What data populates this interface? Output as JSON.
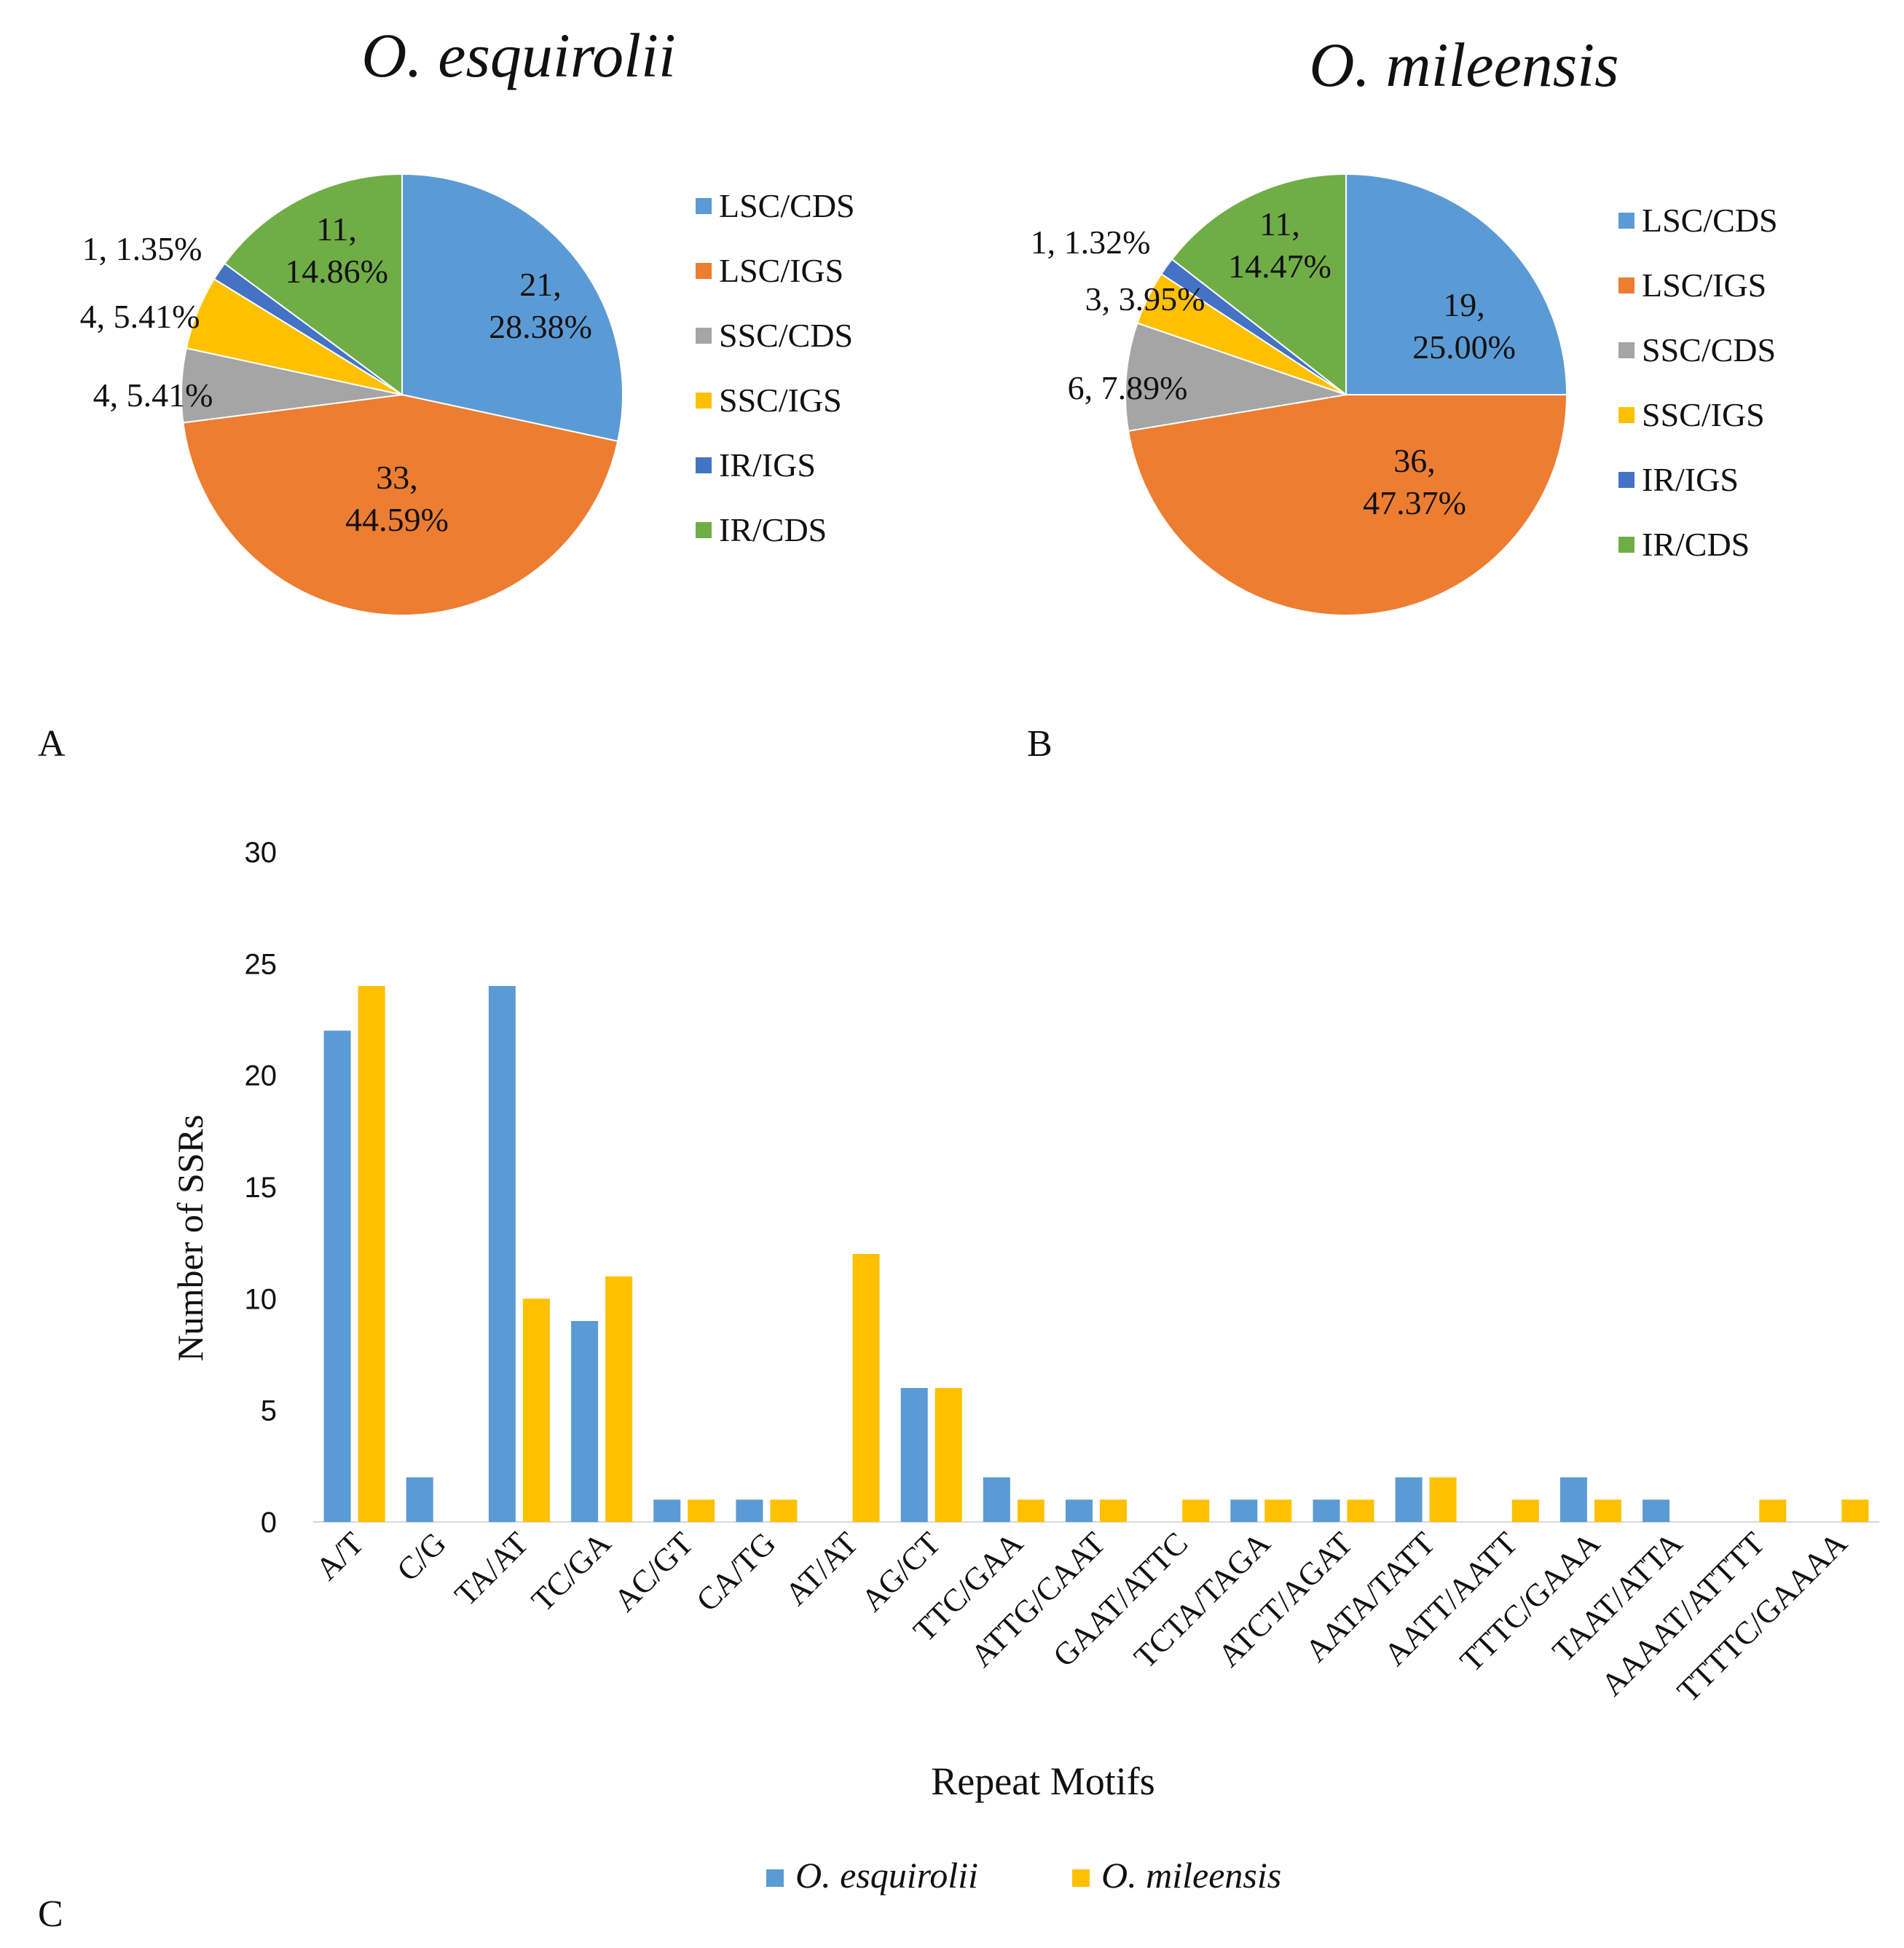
{
  "chart_data": [
    {
      "type": "pie",
      "panel_label": "A",
      "title": "O. esquirolii",
      "slices": [
        {
          "label": "LSC/CDS",
          "value": 21,
          "data_label": [
            "21,",
            "28.38%"
          ]
        },
        {
          "label": "LSC/IGS",
          "value": 33,
          "data_label": [
            "33,",
            "44.59%"
          ]
        },
        {
          "label": "SSC/CDS",
          "value": 4,
          "data_label": [
            "4, 5.41%"
          ]
        },
        {
          "label": "SSC/IGS",
          "value": 4,
          "data_label": [
            "4, 5.41%"
          ]
        },
        {
          "label": "IR/IGS",
          "value": 1,
          "data_label": [
            "1, 1.35%"
          ]
        },
        {
          "label": "IR/CDS",
          "value": 11,
          "data_label": [
            "11,",
            "14.86%"
          ]
        }
      ],
      "legend": [
        "LSC/CDS",
        "LSC/IGS",
        "SSC/CDS",
        "SSC/IGS",
        "IR/IGS",
        "IR/CDS"
      ],
      "legend_position": "right"
    },
    {
      "type": "pie",
      "panel_label": "B",
      "title": "O. mileensis",
      "slices": [
        {
          "label": "LSC/CDS",
          "value": 19,
          "data_label": [
            "19,",
            "25.00%"
          ]
        },
        {
          "label": "LSC/IGS",
          "value": 36,
          "data_label": [
            "36,",
            "47.37%"
          ]
        },
        {
          "label": "SSC/CDS",
          "value": 6,
          "data_label": [
            "6, 7.89%"
          ]
        },
        {
          "label": "SSC/IGS",
          "value": 3,
          "data_label": [
            "3, 3.95%"
          ]
        },
        {
          "label": "IR/IGS",
          "value": 1,
          "data_label": [
            "1, 1.32%"
          ]
        },
        {
          "label": "IR/CDS",
          "value": 11,
          "data_label": [
            "11,",
            "14.47%"
          ]
        }
      ],
      "legend": [
        "LSC/CDS",
        "LSC/IGS",
        "SSC/CDS",
        "SSC/IGS",
        "IR/IGS",
        "IR/CDS"
      ],
      "legend_position": "right"
    },
    {
      "type": "bar",
      "panel_label": "C",
      "categories": [
        "A/T",
        "C/G",
        "TA/AT",
        "TC/GA",
        "AC/GT",
        "CA/TG",
        "AT/AT",
        "AG/CT",
        "TTC/GAA",
        "ATTG/CAAT",
        "GAAT/ATTC",
        "TCTA/TAGA",
        "ATCT/AGAT",
        "AATA/TATT",
        "AATT/AATT",
        "TTTC/GAAA",
        "TAAT/ATTA",
        "AAAAT/ATTTT",
        "TTTTC/GAAAA"
      ],
      "series": [
        {
          "name": "O. esquirolii",
          "values": [
            22,
            2,
            24,
            9,
            1,
            1,
            0,
            6,
            2,
            1,
            0,
            1,
            1,
            2,
            0,
            2,
            1,
            0,
            0
          ]
        },
        {
          "name": "O. mileensis",
          "values": [
            24,
            0,
            10,
            11,
            1,
            1,
            12,
            6,
            1,
            1,
            1,
            1,
            1,
            2,
            1,
            1,
            0,
            1,
            1
          ]
        }
      ],
      "xlabel": "Repeat Motifs",
      "ylabel": "Number of SSRs",
      "ylim": [
        0,
        30
      ],
      "yticks": [
        0,
        5,
        10,
        15,
        20,
        25,
        30
      ],
      "grid": false,
      "legend_position": "bottom"
    }
  ],
  "colors": {
    "LSC/CDS": "#5b9bd5",
    "LSC/IGS": "#ed7d31",
    "SSC/CDS": "#a5a5a5",
    "SSC/IGS": "#ffc000",
    "IR/IGS": "#4472c4",
    "IR/CDS": "#70ad47",
    "series_1": "#5b9bd5",
    "series_2": "#ffc000",
    "text": "#111111"
  }
}
